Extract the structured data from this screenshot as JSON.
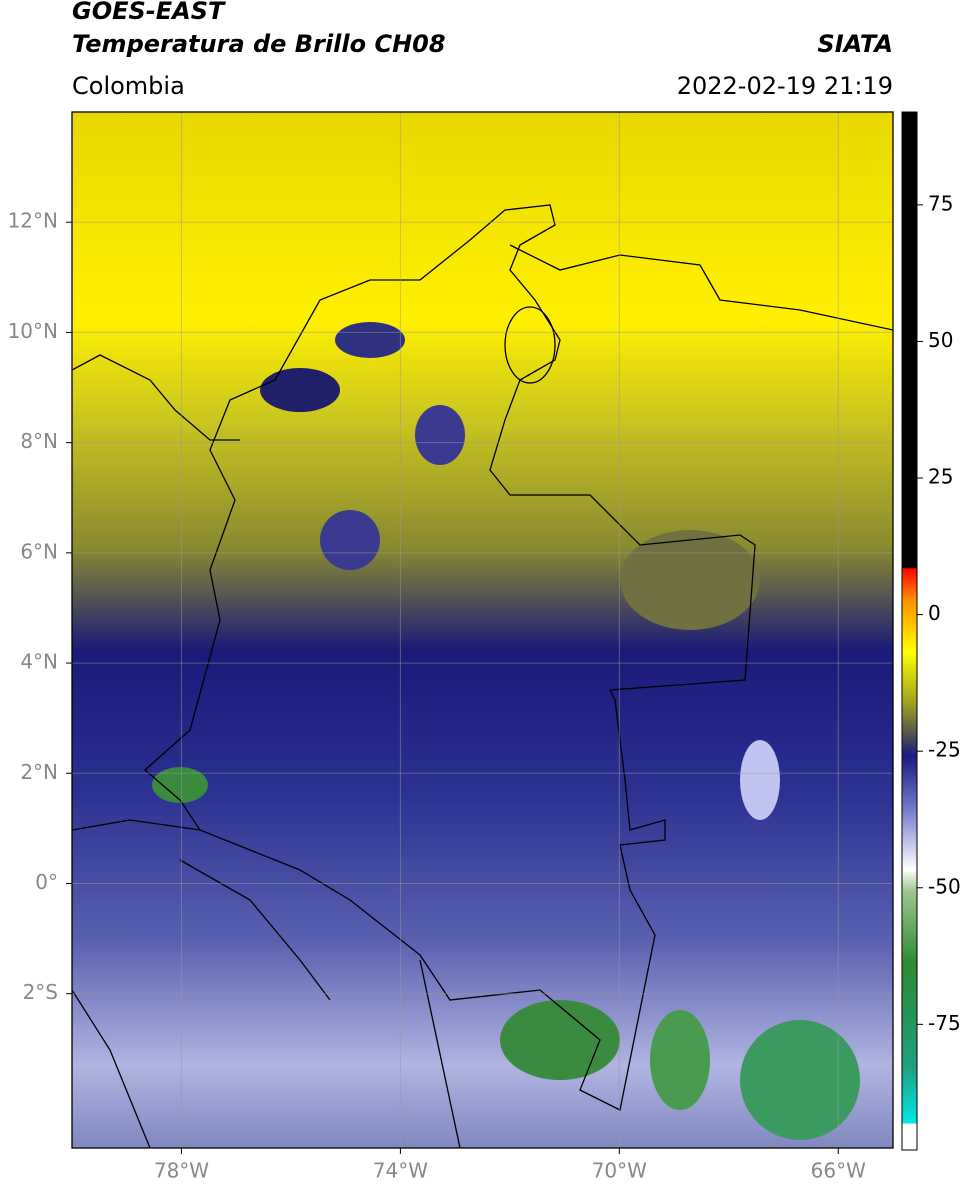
{
  "header": {
    "line1": "GOES-EAST",
    "line2": "Temperatura de Brillo CH08",
    "region": "Colombia",
    "source": "SIATA",
    "datetime": "2022-02-19 21:19"
  },
  "map": {
    "xlim": [
      -80,
      -65
    ],
    "ylim": [
      -4.8,
      14
    ],
    "xticks": [
      {
        "value": -78,
        "label": "78°W"
      },
      {
        "value": -74,
        "label": "74°W"
      },
      {
        "value": -70,
        "label": "70°W"
      },
      {
        "value": -66,
        "label": "66°W"
      }
    ],
    "yticks": [
      {
        "value": 12,
        "label": "12°N"
      },
      {
        "value": 10,
        "label": "10°N"
      },
      {
        "value": 8,
        "label": "8°N"
      },
      {
        "value": 6,
        "label": "6°N"
      },
      {
        "value": 4,
        "label": "4°N"
      },
      {
        "value": 2,
        "label": "2°N"
      },
      {
        "value": 0,
        "label": "0°"
      },
      {
        "value": -2,
        "label": "2°S"
      }
    ],
    "grid": true
  },
  "colorbar": {
    "lim": [
      -98,
      92
    ],
    "ticks": [
      75,
      50,
      25,
      0,
      -25,
      -50,
      -75
    ]
  }
}
